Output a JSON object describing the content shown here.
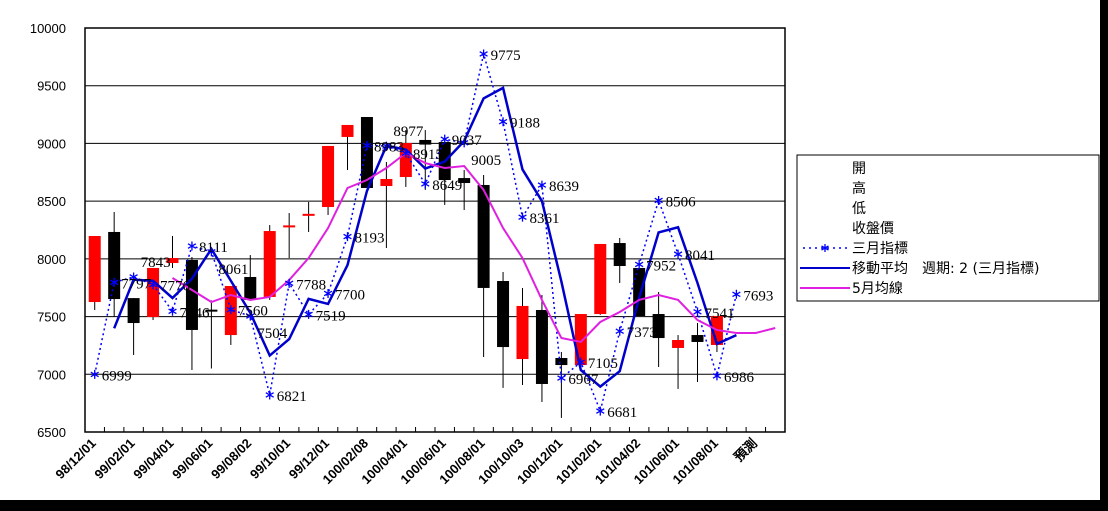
{
  "chart_data": {
    "type": "candlestick",
    "title": "",
    "ylim": [
      6500,
      10000
    ],
    "yticks": [
      6500,
      7000,
      7500,
      8000,
      8500,
      9000,
      9500,
      10000
    ],
    "grid": true,
    "legend_position": "right",
    "category_count": 36,
    "xtick_labels": [
      "98/12/01",
      "99/02/01",
      "99/04/01",
      "99/06/01",
      "99/08/02",
      "99/10/01",
      "99/12/01",
      "100/02/08",
      "100/04/01",
      "100/06/01",
      "100/08/01",
      "100/10/03",
      "100/12/01",
      "101/02/01",
      "101/04/02",
      "101/06/01",
      "101/08/01",
      "預測"
    ],
    "candles": [
      {
        "o": 7626,
        "h": 8198,
        "l": 7557,
        "c": 8198
      },
      {
        "o": 8233,
        "h": 8406,
        "l": 7496,
        "c": 7652
      },
      {
        "o": 7660,
        "h": 7660,
        "l": 7167,
        "c": 7444
      },
      {
        "o": 7496,
        "h": 7921,
        "l": 7470,
        "c": 7921
      },
      {
        "o": 7964,
        "h": 8198,
        "l": 7921,
        "c": 8007
      },
      {
        "o": 7990,
        "h": 8016,
        "l": 7037,
        "c": 7384
      },
      {
        "o": 7560,
        "h": 7640,
        "l": 7050,
        "c": 7550
      },
      {
        "o": 7340,
        "h": 7765,
        "l": 7254,
        "c": 7765
      },
      {
        "o": 7843,
        "h": 8033,
        "l": 7644,
        "c": 7644
      },
      {
        "o": 7670,
        "h": 8293,
        "l": 7644,
        "c": 8241
      },
      {
        "o": 8280,
        "h": 8397,
        "l": 8007,
        "c": 8290
      },
      {
        "o": 8380,
        "h": 8493,
        "l": 8233,
        "c": 8390
      },
      {
        "o": 8449,
        "h": 8978,
        "l": 8380,
        "c": 8978
      },
      {
        "o": 9056,
        "h": 9160,
        "l": 8770,
        "c": 9160
      },
      {
        "o": 9229,
        "h": 9229,
        "l": 8614,
        "c": 8614
      },
      {
        "o": 8631,
        "h": 8839,
        "l": 8094,
        "c": 8692
      },
      {
        "o": 8709,
        "h": 9116,
        "l": 8623,
        "c": 9004
      },
      {
        "o": 9030,
        "h": 9116,
        "l": 8597,
        "c": 8990
      },
      {
        "o": 9012,
        "h": 9012,
        "l": 8467,
        "c": 8683
      },
      {
        "o": 8700,
        "h": 8770,
        "l": 8423,
        "c": 8657
      },
      {
        "o": 8640,
        "h": 8727,
        "l": 7150,
        "c": 7748
      },
      {
        "o": 7808,
        "h": 7886,
        "l": 6882,
        "c": 7236
      },
      {
        "o": 7132,
        "h": 7748,
        "l": 6907,
        "c": 7592
      },
      {
        "o": 7557,
        "h": 7687,
        "l": 6760,
        "c": 6916
      },
      {
        "o": 7141,
        "h": 7193,
        "l": 6622,
        "c": 7080
      },
      {
        "o": 7080,
        "h": 7522,
        "l": 7070,
        "c": 7522
      },
      {
        "o": 7522,
        "h": 8129,
        "l": 7515,
        "c": 8129
      },
      {
        "o": 8137,
        "h": 8181,
        "l": 7791,
        "c": 7938
      },
      {
        "o": 7921,
        "h": 7921,
        "l": 7505,
        "c": 7505
      },
      {
        "o": 7522,
        "h": 7713,
        "l": 7063,
        "c": 7314
      },
      {
        "o": 7228,
        "h": 7340,
        "l": 6873,
        "c": 7297
      },
      {
        "o": 7340,
        "h": 7444,
        "l": 6933,
        "c": 7280
      },
      {
        "o": 7254,
        "h": 7505,
        "l": 7193,
        "c": 7505
      }
    ],
    "indicator_3m": [
      6999,
      7797,
      7843,
      7776,
      7546,
      8111,
      8061,
      7560,
      7504,
      6821,
      7788,
      7519,
      7700,
      8193,
      8983,
      8977,
      8915,
      8649,
      9037,
      9005,
      9775,
      9188,
      8361,
      8639,
      6967,
      7105,
      6681,
      7373,
      7952,
      8506,
      8041,
      7541,
      6986,
      7693
    ],
    "indicator_3m_labels": [
      "6999",
      "7797",
      "7843",
      "7776",
      "7546",
      "8111",
      "8061",
      "7560",
      "7504",
      "6821",
      "7788",
      "7519",
      "7700",
      "8193",
      "8983",
      "8977",
      "8915",
      "8649",
      "9037",
      "9005",
      "9775",
      "9188",
      "8361",
      "8639",
      "6967",
      "7105",
      "6681",
      "7373",
      "7952",
      "8506",
      "8041",
      "7541",
      "6986",
      "7693"
    ],
    "moving_average_period": 2,
    "ma_5m_start": 4,
    "ma_5m": [
      7834,
      7730,
      7626,
      7687,
      7644,
      7670,
      7817,
      8007,
      8267,
      8614,
      8683,
      8787,
      8917,
      8830,
      8787,
      8804,
      8597,
      8267,
      8007,
      7644,
      7314,
      7280,
      7453,
      7540,
      7644,
      7687,
      7644,
      7470,
      7384,
      7358,
      7358,
      7401
    ],
    "legend": [
      {
        "label": "開",
        "type": "none"
      },
      {
        "label": "高",
        "type": "none"
      },
      {
        "label": "低",
        "type": "none"
      },
      {
        "label": "收盤價",
        "type": "none"
      },
      {
        "label": "三月指標",
        "type": "dotted-star",
        "color": "#0000ff"
      },
      {
        "label": "移動平均　週期: 2 (三月指標)",
        "type": "line",
        "color": "#0000cc"
      },
      {
        "label": "5月均線",
        "type": "line",
        "color": "#e020e0"
      }
    ],
    "colors": {
      "up": "#ff0000",
      "down": "#000000",
      "indicator": "#0000ff",
      "ma": "#0000cc",
      "ma5": "#e020e0"
    }
  }
}
